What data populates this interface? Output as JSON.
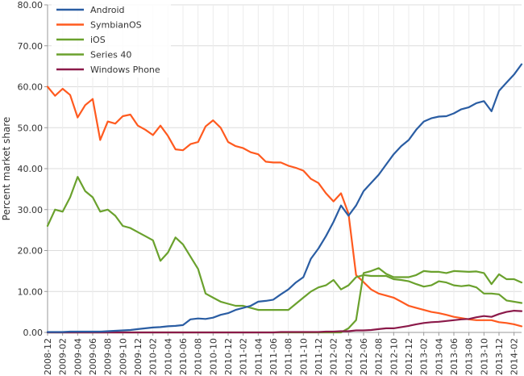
{
  "chart_data": {
    "type": "line",
    "ylabel": "Percent market share",
    "xlabel": "",
    "ylim": [
      0,
      80
    ],
    "grid": true,
    "legend_placement": "top-left",
    "y_ticks": [
      "0.00",
      "10.00",
      "20.00",
      "30.00",
      "40.00",
      "50.00",
      "60.00",
      "70.00",
      "80.00"
    ],
    "x_tick_labels": [
      "2008-12",
      "2009-02",
      "2009-04",
      "2009-06",
      "2009-08",
      "2009-10",
      "2009-12",
      "2010-02",
      "2010-04",
      "2010-06",
      "2010-08",
      "2010-10",
      "2010-12",
      "2011-02",
      "2011-04",
      "2011-06",
      "2011-08",
      "2011-10",
      "2011-12",
      "2012-02",
      "2012-04",
      "2012-06",
      "2012-08",
      "2012-10",
      "2012-12",
      "2013-02",
      "2013-04",
      "2013-06",
      "2013-08",
      "2013-10",
      "2013-12",
      "2014-02"
    ],
    "x": [
      "2008-12",
      "2009-01",
      "2009-02",
      "2009-03",
      "2009-04",
      "2009-05",
      "2009-06",
      "2009-07",
      "2009-08",
      "2009-09",
      "2009-10",
      "2009-11",
      "2009-12",
      "2010-01",
      "2010-02",
      "2010-03",
      "2010-04",
      "2010-05",
      "2010-06",
      "2010-07",
      "2010-08",
      "2010-09",
      "2010-10",
      "2010-11",
      "2010-12",
      "2011-01",
      "2011-02",
      "2011-03",
      "2011-04",
      "2011-05",
      "2011-06",
      "2011-07",
      "2011-08",
      "2011-09",
      "2011-10",
      "2011-11",
      "2011-12",
      "2012-01",
      "2012-02",
      "2012-03",
      "2012-04",
      "2012-05",
      "2012-06",
      "2012-07",
      "2012-08",
      "2012-09",
      "2012-10",
      "2012-11",
      "2012-12",
      "2013-01",
      "2013-02",
      "2013-03",
      "2013-04",
      "2013-05",
      "2013-06",
      "2013-07",
      "2013-08",
      "2013-09",
      "2013-10",
      "2013-11",
      "2013-12",
      "2014-01",
      "2014-02",
      "2014-03"
    ],
    "series": [
      {
        "name": "Android",
        "color": "#2a5da3",
        "values": [
          0.1,
          0.1,
          0.1,
          0.2,
          0.2,
          0.2,
          0.2,
          0.2,
          0.3,
          0.4,
          0.5,
          0.6,
          0.8,
          1.0,
          1.2,
          1.3,
          1.5,
          1.6,
          1.8,
          3.2,
          3.4,
          3.3,
          3.6,
          4.3,
          4.7,
          5.5,
          6.0,
          6.5,
          7.5,
          7.7,
          8.0,
          9.3,
          10.5,
          12.2,
          13.5,
          18.0,
          20.5,
          23.5,
          27.0,
          31.0,
          28.5,
          31.0,
          34.5,
          36.5,
          38.5,
          41.0,
          43.5,
          45.5,
          47.0,
          49.5,
          51.5,
          52.3,
          52.7,
          52.8,
          53.5,
          54.5,
          55.0,
          56.0,
          56.5,
          54.0,
          59.0,
          61.0,
          63.0,
          65.5
        ]
      },
      {
        "name": "SymbianOS",
        "color": "#ff5a1f",
        "values": [
          60.0,
          57.8,
          59.5,
          58.0,
          52.5,
          55.5,
          57.0,
          47.0,
          51.5,
          51.0,
          52.8,
          53.2,
          50.5,
          49.5,
          48.2,
          50.5,
          48.0,
          44.7,
          44.5,
          46.0,
          46.5,
          50.3,
          51.8,
          50.0,
          46.5,
          45.5,
          45.0,
          44.0,
          43.5,
          41.7,
          41.5,
          41.5,
          40.7,
          40.2,
          39.5,
          37.5,
          36.5,
          34.0,
          32.0,
          34.0,
          29.0,
          14.0,
          12.3,
          10.5,
          9.5,
          9.0,
          8.5,
          7.5,
          6.5,
          6.0,
          5.5,
          5.0,
          4.7,
          4.3,
          3.8,
          3.5,
          3.2,
          3.0,
          3.0,
          3.0,
          2.5,
          2.3,
          2.0,
          1.5
        ]
      },
      {
        "name": "iOS",
        "color": "#6aa12d",
        "values": [
          0,
          0,
          0,
          0,
          0,
          0,
          0,
          0,
          0,
          0,
          0,
          0,
          0,
          0,
          0,
          0,
          0,
          0,
          0,
          0,
          0,
          0,
          0,
          0,
          0,
          0,
          0,
          0,
          0,
          0,
          0,
          0,
          0,
          0,
          0,
          0,
          0,
          0,
          0,
          0,
          1.0,
          3.0,
          14.5,
          15.0,
          15.7,
          14.3,
          13.5,
          13.5,
          13.5,
          14.0,
          15.0,
          14.8,
          14.8,
          14.5,
          15.0,
          14.9,
          14.8,
          14.9,
          14.5,
          11.8,
          14.2,
          13.0,
          13.0,
          12.2
        ]
      },
      {
        "name": "Series 40",
        "color": "#6aa12d",
        "values": [
          26.0,
          30.0,
          29.5,
          33.0,
          38.0,
          34.5,
          33.0,
          29.5,
          30.0,
          28.5,
          26.0,
          25.5,
          24.5,
          23.5,
          22.5,
          17.5,
          19.5,
          23.2,
          21.5,
          18.5,
          15.5,
          9.5,
          8.5,
          7.5,
          7.0,
          6.5,
          6.5,
          6.0,
          5.5,
          5.5,
          5.5,
          5.5,
          5.5,
          7.0,
          8.5,
          10.0,
          11.0,
          11.5,
          12.8,
          10.5,
          11.5,
          13.5,
          14.0,
          13.8,
          13.8,
          13.8,
          13.0,
          12.8,
          12.5,
          11.8,
          11.2,
          11.5,
          12.5,
          12.2,
          11.5,
          11.3,
          11.5,
          11.0,
          9.5,
          9.5,
          9.3,
          7.8,
          7.5,
          7.2
        ]
      },
      {
        "name": "Windows Phone",
        "color": "#8b1a4a",
        "values": [
          0,
          0,
          0,
          0,
          0,
          0,
          0,
          0,
          0,
          0,
          0,
          0,
          0,
          0,
          0,
          0,
          0,
          0,
          0,
          0,
          0,
          0,
          0,
          0,
          0,
          0,
          0,
          0,
          0,
          0,
          0,
          0.1,
          0.1,
          0.1,
          0.1,
          0.1,
          0.1,
          0.2,
          0.2,
          0.3,
          0.3,
          0.5,
          0.5,
          0.6,
          0.8,
          1.0,
          1.0,
          1.3,
          1.6,
          2.0,
          2.3,
          2.5,
          2.6,
          2.8,
          3.0,
          3.2,
          3.3,
          3.7,
          4.0,
          3.8,
          4.5,
          5.0,
          5.3,
          5.2
        ]
      }
    ]
  }
}
